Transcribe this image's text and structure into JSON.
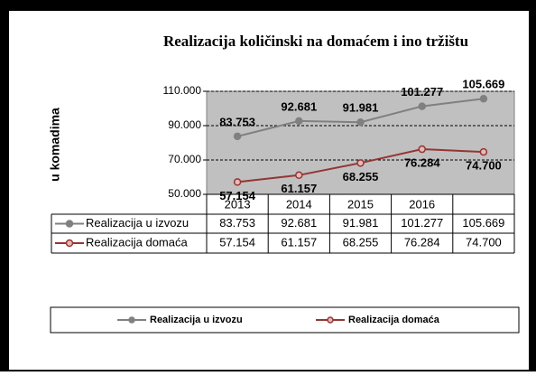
{
  "chart_data": {
    "type": "line",
    "title": "Realizacija količinski na domaćem i ino tržištu",
    "y_label": "u komadima",
    "categories": [
      "2013",
      "2014",
      "2015",
      "2016",
      null
    ],
    "series": [
      {
        "name": "Realizacija u izvozu",
        "color": "#808080",
        "values": [
          83753,
          92681,
          91981,
          101277,
          105669
        ],
        "value_labels": [
          "83.753",
          "92.681",
          "91.981",
          "101.277",
          "105.669"
        ]
      },
      {
        "name": "Realizacija domaća",
        "color": "#943634",
        "values": [
          57154,
          61157,
          68255,
          76284,
          74700
        ],
        "value_labels": [
          "57.154",
          "61.157",
          "68.255",
          "76.284",
          "74.700"
        ]
      }
    ],
    "ylim": [
      50000,
      110000
    ],
    "yticks": [
      {
        "value": 50000,
        "label": "50.000"
      },
      {
        "value": 70000,
        "label": "70.000"
      },
      {
        "value": 90000,
        "label": "90.000"
      },
      {
        "value": 110000,
        "label": "110.000"
      }
    ],
    "grid": true,
    "legend": "bottom"
  }
}
